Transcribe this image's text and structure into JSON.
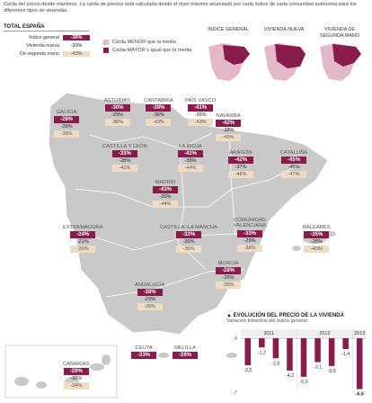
{
  "intro": "Caída del precio desde máximos. La caída de precios está calculada desde el nivel máximo alcanzado por cada índice de cada comunidad autónoma para los diferentes tipos de viviendas.",
  "total": {
    "title": "TOTAL ESPAÑA",
    "rows": [
      {
        "label": "Índice general",
        "value": "-36%"
      },
      {
        "label": "Vivienda nueva",
        "value": "-30%"
      },
      {
        "label": "De segunda mano",
        "value": "-43%"
      }
    ]
  },
  "legend": {
    "lower": "Caída MENOR que la media",
    "higher": "Caída MAYOR o igual que la media"
  },
  "minimaps": [
    "ÍNDICE GENERAL",
    "VIVIENDA NUEVA",
    "VIVIENDA DE SEGUNDA MANO"
  ],
  "regions": [
    {
      "name": "GALICIA",
      "general": "-28%",
      "nueva": "-26%",
      "segunda": "-35%"
    },
    {
      "name": "ASTURIAS",
      "general": "-30%",
      "nueva": "-29%",
      "segunda": "-36%"
    },
    {
      "name": "CANTABRIA",
      "general": "-39%",
      "nueva": "-36%",
      "segunda": "-43%"
    },
    {
      "name": "PAÍS VASCO",
      "general": "-41%",
      "nueva": "-35%",
      "segunda": "-43%"
    },
    {
      "name": "NAVARRA",
      "general": "-42%",
      "nueva": "-38%",
      "segunda": "-49%"
    },
    {
      "name": "CASTILLA Y LEÓN",
      "general": "-33%",
      "nueva": "-28%",
      "segunda": "-41%"
    },
    {
      "name": "LA RIOJA",
      "general": "-41%",
      "nueva": "-39%",
      "segunda": "-44%"
    },
    {
      "name": "ARAGÓN",
      "general": "-42%",
      "nueva": "-37%",
      "segunda": "-46%"
    },
    {
      "name": "CATALUÑA",
      "general": "-45%",
      "nueva": "-40%",
      "segunda": "-47%"
    },
    {
      "name": "MADRID",
      "general": "-43%",
      "nueva": "-36%",
      "segunda": "-44%"
    },
    {
      "name": "EXTREMADURA",
      "general": "-24%",
      "nueva": "-21%",
      "segunda": "-30%"
    },
    {
      "name": "CASTILLA–LA MANCHA",
      "general": "-32%",
      "nueva": "-30%",
      "segunda": "-36%"
    },
    {
      "name": "COMUNIDAD VALENCIANA",
      "general": "-33%",
      "nueva": "-29%",
      "segunda": "-38%"
    },
    {
      "name": "BALEARES",
      "general": "-35%",
      "nueva": "-28%",
      "segunda": "-40%"
    },
    {
      "name": "MURCIA",
      "general": "-28%",
      "nueva": "-26%",
      "segunda": "-35%"
    },
    {
      "name": "ANDALUCÍA",
      "general": "-28%",
      "nueva": "-23%",
      "segunda": "-35%"
    },
    {
      "name": "CANARIAS",
      "general": "-29%",
      "nueva": "-26%",
      "segunda": "-34%"
    },
    {
      "name": "CEUTA",
      "general": "-33%"
    },
    {
      "name": "MELILLA",
      "general": "-28%"
    }
  ],
  "colors": {
    "higher": "#8a1c4c",
    "lower": "#f0dcc2",
    "map": "#c9c9c9",
    "mapLow": "#e3b8c8"
  },
  "chart_data": {
    "type": "bar",
    "title": "EVOLUCIÓN DEL PRECIO DE LA VIVIENDA",
    "subtitle": "Variación trimestral del índice general",
    "years": [
      "2011",
      "2012",
      "2013"
    ],
    "categories": [
      "I",
      "II",
      "III",
      "IV",
      "I",
      "II",
      "III",
      "IV",
      "I"
    ],
    "values": [
      -3.5,
      -1.2,
      -2.6,
      -4.2,
      -5.0,
      -3.1,
      -3.6,
      -1.4,
      -6.6
    ],
    "value_labels": [
      "-3,5",
      "-1,2",
      "-2,6",
      "-4,2",
      "-5,0",
      "-3,1",
      "-3,6",
      "-1,4",
      "-6,6"
    ],
    "y_ticks": [
      "0",
      "-7"
    ],
    "ylim": [
      -7,
      0
    ]
  }
}
